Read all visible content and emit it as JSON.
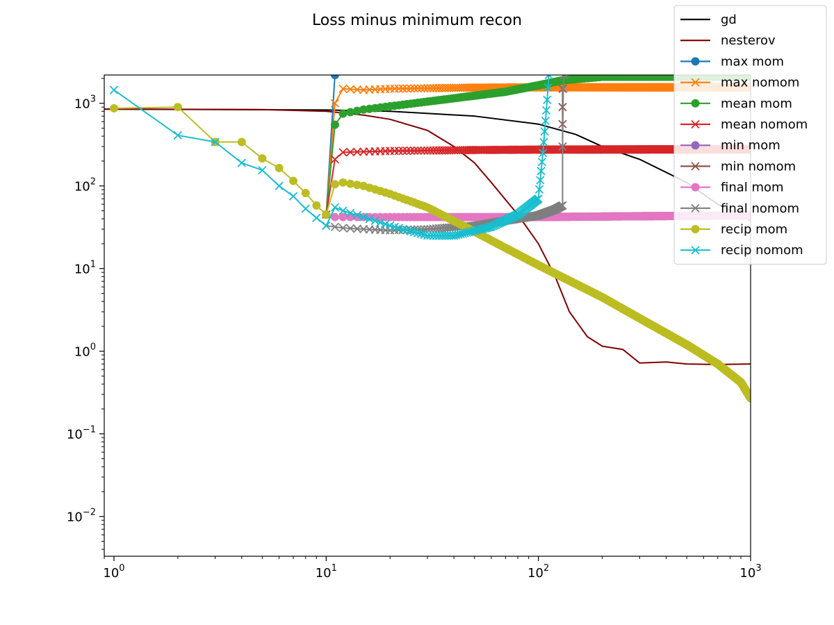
{
  "chart_data": {
    "type": "line",
    "title": "Loss minus minimum recon",
    "xlabel": "",
    "ylabel": "",
    "xscale": "log",
    "yscale": "log",
    "xlim": [
      0.9,
      1000
    ],
    "ylim": [
      0.0033,
      2200
    ],
    "grid": false,
    "legend_position": "top-right",
    "x_ticks": [
      {
        "value": 1,
        "base": "10",
        "exp": "0"
      },
      {
        "value": 10,
        "base": "10",
        "exp": "1"
      },
      {
        "value": 100,
        "base": "10",
        "exp": "2"
      },
      {
        "value": 1000,
        "base": "10",
        "exp": "3"
      }
    ],
    "y_ticks": [
      {
        "value": 0.01,
        "base": "10",
        "exp": "−2"
      },
      {
        "value": 0.1,
        "base": "10",
        "exp": "−1"
      },
      {
        "value": 1,
        "base": "10",
        "exp": "0"
      },
      {
        "value": 10,
        "base": "10",
        "exp": "1"
      },
      {
        "value": 100,
        "base": "10",
        "exp": "2"
      },
      {
        "value": 1000,
        "base": "10",
        "exp": "3"
      }
    ],
    "series": [
      {
        "name": "gd",
        "color": "#000000",
        "marker": "none",
        "points": [
          [
            0.9,
            850
          ],
          [
            10,
            830
          ],
          [
            20,
            800
          ],
          [
            50,
            700
          ],
          [
            100,
            560
          ],
          [
            150,
            420
          ],
          [
            200,
            300
          ],
          [
            300,
            210
          ],
          [
            500,
            110
          ],
          [
            700,
            60
          ],
          [
            1000,
            38
          ]
        ]
      },
      {
        "name": "nesterov",
        "color": "#800000",
        "marker": "none",
        "points": [
          [
            0.9,
            850
          ],
          [
            5,
            840
          ],
          [
            10,
            800
          ],
          [
            15,
            720
          ],
          [
            20,
            640
          ],
          [
            30,
            470
          ],
          [
            40,
            300
          ],
          [
            50,
            190
          ],
          [
            60,
            110
          ],
          [
            80,
            45
          ],
          [
            100,
            20
          ],
          [
            120,
            8
          ],
          [
            140,
            3
          ],
          [
            170,
            1.5
          ],
          [
            200,
            1.15
          ],
          [
            250,
            1.05
          ],
          [
            300,
            0.72
          ],
          [
            400,
            0.74
          ],
          [
            500,
            0.7
          ],
          [
            700,
            0.69
          ],
          [
            1000,
            0.7
          ]
        ]
      },
      {
        "name": "max mom",
        "color": "#1f77b4",
        "marker": "circle",
        "points": [
          [
            10,
            45
          ],
          [
            11,
            2200
          ]
        ]
      },
      {
        "name": "max nomom",
        "color": "#ff7f0e",
        "marker": "x",
        "points": [
          [
            10,
            45
          ],
          [
            11,
            1000
          ],
          [
            12,
            1500
          ],
          [
            15,
            1450
          ],
          [
            20,
            1500
          ],
          [
            50,
            1550
          ],
          [
            100,
            1560
          ],
          [
            200,
            1560
          ],
          [
            500,
            1560
          ],
          [
            1000,
            1560
          ]
        ]
      },
      {
        "name": "mean mom",
        "color": "#2ca02c",
        "marker": "circle",
        "points": [
          [
            10,
            45
          ],
          [
            11,
            550
          ],
          [
            12,
            750
          ],
          [
            15,
            840
          ],
          [
            20,
            920
          ],
          [
            40,
            1150
          ],
          [
            70,
            1380
          ],
          [
            100,
            1650
          ],
          [
            130,
            1900
          ],
          [
            200,
            2100
          ],
          [
            500,
            2100
          ],
          [
            1000,
            2100
          ]
        ]
      },
      {
        "name": "mean nomom",
        "color": "#d62728",
        "marker": "x",
        "points": [
          [
            10,
            45
          ],
          [
            11,
            210
          ],
          [
            12,
            255
          ],
          [
            20,
            265
          ],
          [
            50,
            272
          ],
          [
            100,
            275
          ],
          [
            1000,
            278
          ]
        ]
      },
      {
        "name": "min mom",
        "color": "#9467bd",
        "marker": "circle",
        "points": []
      },
      {
        "name": "min nomom",
        "color": "#8c564b",
        "marker": "x",
        "points": [
          [
            130,
            1500
          ],
          [
            130,
            900
          ],
          [
            130,
            560
          ],
          [
            130,
            300
          ]
        ]
      },
      {
        "name": "final mom",
        "color": "#e377c2",
        "marker": "circle",
        "points": [
          [
            11,
            42
          ],
          [
            20,
            42
          ],
          [
            50,
            42
          ],
          [
            100,
            42
          ],
          [
            300,
            43
          ],
          [
            1000,
            44
          ]
        ]
      },
      {
        "name": "final nomom",
        "color": "#7f7f7f",
        "marker": "x",
        "points": [
          [
            10,
            33
          ],
          [
            12,
            31
          ],
          [
            15,
            30
          ],
          [
            20,
            29
          ],
          [
            30,
            30
          ],
          [
            50,
            33
          ],
          [
            70,
            38
          ],
          [
            100,
            44
          ],
          [
            120,
            52
          ],
          [
            130,
            58
          ],
          [
            130,
            300
          ],
          [
            131,
            1500
          ],
          [
            132,
            2200
          ]
        ]
      },
      {
        "name": "recip mom",
        "color": "#bcbd22",
        "marker": "circle",
        "points": [
          [
            1,
            870
          ],
          [
            2,
            900
          ],
          [
            3,
            340
          ],
          [
            4,
            340
          ],
          [
            5,
            215
          ],
          [
            6,
            165
          ],
          [
            7,
            115
          ],
          [
            8,
            82
          ],
          [
            9,
            58
          ],
          [
            10,
            45
          ],
          [
            11,
            105
          ],
          [
            12,
            110
          ],
          [
            15,
            100
          ],
          [
            20,
            80
          ],
          [
            30,
            55
          ],
          [
            50,
            28
          ],
          [
            100,
            11
          ],
          [
            200,
            4.5
          ],
          [
            300,
            2.5
          ],
          [
            500,
            1.2
          ],
          [
            700,
            0.7
          ],
          [
            900,
            0.42
          ],
          [
            1000,
            0.27
          ]
        ]
      },
      {
        "name": "recip nomom",
        "color": "#17becf",
        "marker": "x",
        "points": [
          [
            1,
            1450
          ],
          [
            2,
            410
          ],
          [
            3,
            340
          ],
          [
            4,
            190
          ],
          [
            5,
            155
          ],
          [
            6,
            100
          ],
          [
            7,
            75
          ],
          [
            8,
            53
          ],
          [
            9,
            41
          ],
          [
            10,
            33
          ],
          [
            11,
            55
          ],
          [
            12,
            50
          ],
          [
            15,
            42
          ],
          [
            20,
            33
          ],
          [
            30,
            25
          ],
          [
            40,
            25
          ],
          [
            60,
            32
          ],
          [
            80,
            45
          ],
          [
            100,
            70
          ],
          [
            105,
            250
          ],
          [
            110,
            1100
          ],
          [
            112,
            2200
          ]
        ]
      }
    ]
  }
}
